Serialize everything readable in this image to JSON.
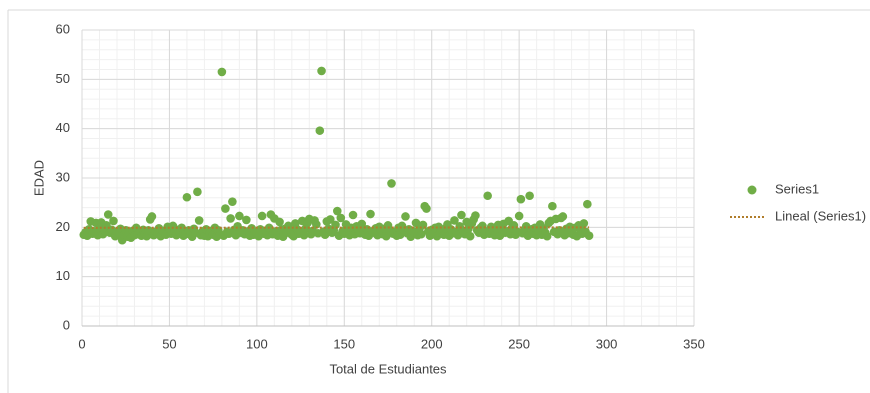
{
  "chart_data": {
    "type": "scatter",
    "x_label": "Total de Estudiantes",
    "y_label": "EDAD",
    "xlim": [
      0,
      350
    ],
    "xticks": [
      0,
      50,
      100,
      150,
      200,
      250,
      300,
      350
    ],
    "ylim": [
      0,
      60
    ],
    "yticks": [
      0,
      10,
      20,
      30,
      40,
      50,
      60
    ],
    "grid": true,
    "minor_grid": true,
    "legend": "right",
    "series": [
      {
        "name": "Series1",
        "color": "#70ad47",
        "x": [
          1,
          2,
          3,
          4,
          5,
          6,
          7,
          8,
          9,
          10,
          11,
          12,
          13,
          14,
          15,
          16,
          17,
          18,
          19,
          20,
          21,
          22,
          23,
          24,
          25,
          26,
          27,
          28,
          29,
          30,
          31,
          32,
          33,
          34,
          35,
          36,
          37,
          38,
          39,
          40,
          41,
          42,
          43,
          44,
          45,
          46,
          47,
          48,
          49,
          50,
          51,
          52,
          53,
          54,
          55,
          56,
          57,
          58,
          59,
          60,
          61,
          62,
          63,
          64,
          65,
          66,
          67,
          68,
          69,
          70,
          71,
          72,
          73,
          74,
          75,
          76,
          77,
          78,
          79,
          80,
          81,
          82,
          83,
          84,
          85,
          86,
          87,
          88,
          89,
          90,
          91,
          92,
          93,
          94,
          95,
          96,
          97,
          98,
          99,
          100,
          101,
          102,
          103,
          104,
          105,
          106,
          107,
          108,
          109,
          110,
          111,
          112,
          113,
          114,
          115,
          116,
          117,
          118,
          119,
          120,
          121,
          122,
          123,
          124,
          125,
          126,
          127,
          128,
          129,
          130,
          131,
          132,
          133,
          134,
          135,
          136,
          137,
          138,
          139,
          140,
          141,
          142,
          143,
          144,
          145,
          146,
          147,
          148,
          149,
          150,
          151,
          152,
          153,
          154,
          155,
          156,
          157,
          158,
          159,
          160,
          161,
          162,
          163,
          164,
          165,
          166,
          167,
          168,
          169,
          170,
          171,
          172,
          173,
          174,
          175,
          176,
          177,
          178,
          179,
          180,
          181,
          182,
          183,
          184,
          185,
          186,
          187,
          188,
          189,
          190,
          191,
          192,
          193,
          194,
          195,
          196,
          197,
          198,
          199,
          200,
          201,
          202,
          203,
          204,
          205,
          206,
          207,
          208,
          209,
          210,
          211,
          212,
          213,
          214,
          215,
          216,
          217,
          218,
          219,
          220,
          221,
          222,
          223,
          224,
          225,
          226,
          227,
          228,
          229,
          230,
          231,
          232,
          233,
          234,
          235,
          236,
          237,
          238,
          239,
          240,
          241,
          242,
          243,
          244,
          245,
          246,
          247,
          248,
          249,
          250,
          251,
          252,
          253,
          254,
          255,
          256,
          257,
          258,
          259,
          260,
          261,
          262,
          263,
          264,
          265,
          266,
          267,
          268,
          269,
          270,
          271,
          272,
          273,
          274,
          275,
          276,
          277,
          278,
          279,
          280,
          281,
          282,
          283,
          284,
          285,
          286,
          287,
          288,
          289,
          290
        ],
        "values": [
          18.5,
          19,
          18.3,
          19.6,
          21.2,
          18.7,
          19.2,
          20.9,
          18.4,
          19.8,
          21,
          18.6,
          19.3,
          20.4,
          22.6,
          18.9,
          19.5,
          21.3,
          18.2,
          19.1,
          18.8,
          19.7,
          17.4,
          18.5,
          19.4,
          18.1,
          18.9,
          17.9,
          19.3,
          18.4,
          19.9,
          18.6,
          19.2,
          18.3,
          19.5,
          18.7,
          18.2,
          19.4,
          21.6,
          22.2,
          18.4,
          19.1,
          18.6,
          19.8,
          18.2,
          19.3,
          18.9,
          18.5,
          20.1,
          19.6,
          18.7,
          20.3,
          19.2,
          18.4,
          19.5,
          18.8,
          19.9,
          18.3,
          18.6,
          26.1,
          19.4,
          18.5,
          18.1,
          19.7,
          18.9,
          27.2,
          21.4,
          18.4,
          19.2,
          18.3,
          19.6,
          18.2,
          18.8,
          19.3,
          18.5,
          19.9,
          18.1,
          19.4,
          18.6,
          51.5,
          18.3,
          23.8,
          19.1,
          18.7,
          21.8,
          25.2,
          19.5,
          18.4,
          20.2,
          22.3,
          18.9,
          19.4,
          18.6,
          21.5,
          19.2,
          18.3,
          19.8,
          18.5,
          19.1,
          18.8,
          18.2,
          19.6,
          22.3,
          18.7,
          19.3,
          18.4,
          19.9,
          22.6,
          18.6,
          21.8,
          19.2,
          18.3,
          21.1,
          19.5,
          18.1,
          19.7,
          18.9,
          20.3,
          19.4,
          18.5,
          18.2,
          20.8,
          19.6,
          18.7,
          19.2,
          21.3,
          18.4,
          19.8,
          20.9,
          21.7,
          18.6,
          19.3,
          21.4,
          20.6,
          18.8,
          39.6,
          51.7,
          19.1,
          18.5,
          21.2,
          19.7,
          21.6,
          18.9,
          19.4,
          20.5,
          23.3,
          18.3,
          21.9,
          19.2,
          18.7,
          20.6,
          19.5,
          18.4,
          19.9,
          22.5,
          18.6,
          20.2,
          19.3,
          18.8,
          20.7,
          19.1,
          18.5,
          19.6,
          18.3,
          22.7,
          19.2,
          18.9,
          19.8,
          18.4,
          20.1,
          19.3,
          18.6,
          19.7,
          18.2,
          20.4,
          19.5,
          28.9,
          18.7,
          19.1,
          18.3,
          19.9,
          18.5,
          20.3,
          19.4,
          22.2,
          18.8,
          19.6,
          18.1,
          19.3,
          18.9,
          20.9,
          18.4,
          19.7,
          18.6,
          20.5,
          24.3,
          23.8,
          19.2,
          18.3,
          19.5,
          18.7,
          19.9,
          18.2,
          20.1,
          18.9,
          19.4,
          18.5,
          19.8,
          20.6,
          18.3,
          19.6,
          18.8,
          21.4,
          19.1,
          18.4,
          20.2,
          22.5,
          19.3,
          18.6,
          21.1,
          19.7,
          18.2,
          20.8,
          21.6,
          22.4,
          19.4,
          18.9,
          19.9,
          20.3,
          18.5,
          19.2,
          26.4,
          18.7,
          20.1,
          19.5,
          18.4,
          19.8,
          20.5,
          18.3,
          19.6,
          20.7,
          18.9,
          19.2,
          21.3,
          18.6,
          19.9,
          20.4,
          18.5,
          19.1,
          22.3,
          25.7,
          18.8,
          19.4,
          20.2,
          18.3,
          26.4,
          19.6,
          18.7,
          19.9,
          18.4,
          19.3,
          20.6,
          18.5,
          19.8,
          18.9,
          18.2,
          20.9,
          21.3,
          24.3,
          19.1,
          21.7,
          18.6,
          19.4,
          21.9,
          22.2,
          18.4,
          19.7,
          18.8,
          20.1,
          19.3,
          18.5,
          19.9,
          18.2,
          20.4,
          19.6,
          18.7,
          20.8,
          19.1,
          24.7,
          18.3
        ]
      }
    ],
    "trendline": {
      "name": "Lineal (Series1)",
      "color": "#b07d2b",
      "x": [
        1,
        290
      ],
      "values": [
        19.9,
        20.0
      ]
    }
  }
}
